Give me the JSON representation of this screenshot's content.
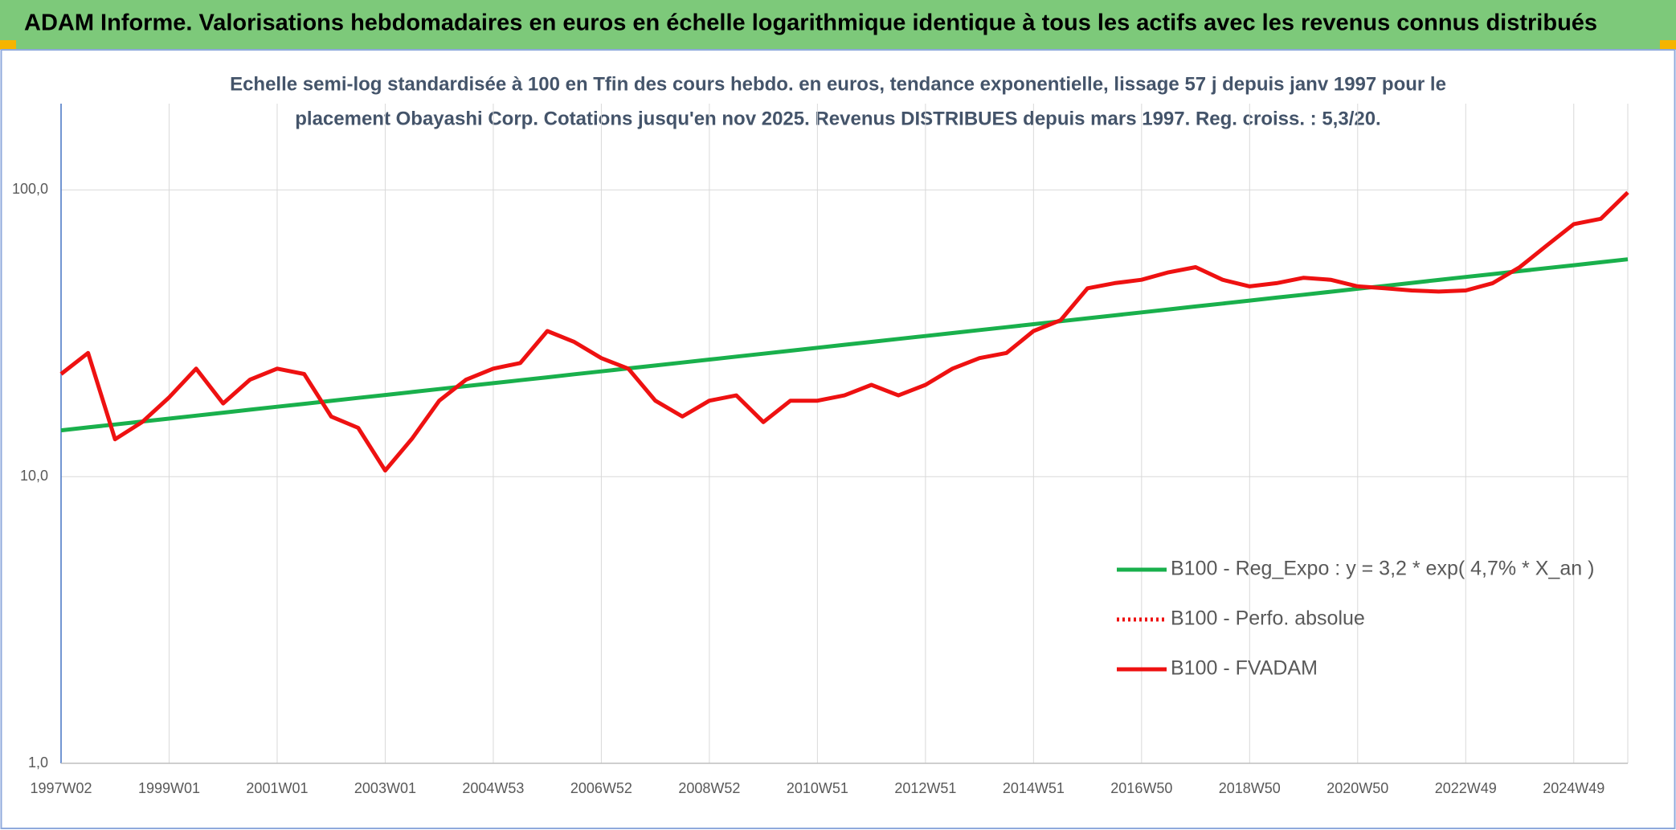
{
  "chart_data": {
    "type": "line",
    "title": "ADAM Informe. Valorisations hebdomadaires en euros en échelle logarithmique identique à tous les actifs avec les revenus connus distribués",
    "subtitle": [
      "Echelle semi-log standardisée à 100 en Tfin des cours hebdo. en euros, tendance exponentielle, lissage 57 j depuis janv 1997 pour le",
      "placement Obayashi Corp. Cotations jusqu'en nov 2025. Revenus DISTRIBUES depuis mars 1997. Reg. croiss. : 5,3/20."
    ],
    "log_y": true,
    "grid": true,
    "legend": "lower right",
    "ylim": [
      1,
      200
    ],
    "yticks": [
      {
        "value": 1,
        "label": "1,0"
      },
      {
        "value": 10,
        "label": "10,0"
      },
      {
        "value": 100,
        "label": "100,0"
      }
    ],
    "categories": [
      "1997W02",
      null,
      null,
      null,
      "1999W01",
      null,
      null,
      null,
      "2001W01",
      null,
      null,
      null,
      "2003W01",
      null,
      null,
      null,
      "2004W53",
      null,
      null,
      null,
      "2006W52",
      null,
      null,
      null,
      "2008W52",
      null,
      null,
      null,
      "2010W51",
      null,
      null,
      null,
      "2012W51",
      null,
      null,
      null,
      "2014W51",
      null,
      null,
      null,
      "2016W50",
      null,
      null,
      null,
      "2018W50",
      null,
      null,
      null,
      "2020W50",
      null,
      null,
      null,
      "2022W49",
      null,
      null,
      null,
      "2024W49",
      null,
      null
    ],
    "series": [
      {
        "name": "B100 - Reg_Expo : y = 3,2 * exp( 4,7% *  X_an )",
        "color": "#19b04c",
        "dash": "solid",
        "values": [
          14.5,
          14.85,
          15.2,
          15.57,
          15.94,
          16.32,
          16.71,
          17.12,
          17.53,
          17.95,
          18.38,
          18.82,
          19.27,
          19.73,
          20.21,
          20.69,
          21.18,
          21.69,
          22.21,
          22.75,
          23.29,
          23.85,
          24.42,
          25.01,
          25.6,
          26.22,
          26.85,
          27.49,
          28.15,
          28.83,
          29.52,
          30.22,
          30.94,
          31.69,
          32.45,
          33.22,
          34.02,
          34.84,
          35.67,
          36.53,
          37.4,
          38.3,
          39.22,
          40.16,
          41.12,
          42.11,
          43.12,
          44.15,
          45.21,
          46.29,
          47.4,
          48.54,
          49.7,
          50.89,
          52.12,
          53.37,
          54.64,
          55.95,
          57.3
        ]
      },
      {
        "name": "B100 - Perfo. absolue",
        "color": "#ee1111",
        "dash": "dotted",
        "values": [
          null,
          null,
          null,
          null,
          null,
          null,
          null,
          null,
          null,
          null,
          null,
          null,
          null,
          null,
          null,
          null,
          null,
          null,
          null,
          null,
          null,
          null,
          null,
          null,
          null,
          null,
          null,
          null,
          null,
          null,
          null,
          null,
          null,
          null,
          null,
          null,
          null,
          null,
          null,
          null,
          null,
          null,
          null,
          null,
          null,
          null,
          null,
          null,
          null,
          null,
          null,
          null,
          null,
          null,
          null,
          null,
          null,
          null,
          null
        ]
      },
      {
        "name": "B100 - FVADAM",
        "color": "#ee1111",
        "dash": "solid",
        "values": [
          22.8,
          27,
          13.5,
          15.5,
          18.9,
          23.8,
          18,
          21.8,
          23.8,
          22.8,
          16.2,
          14.8,
          10.5,
          13.6,
          18.4,
          21.8,
          23.8,
          24.9,
          32.2,
          29.5,
          25.9,
          23.8,
          18.4,
          16.2,
          18.4,
          19.2,
          15.5,
          18.4,
          18.4,
          19.2,
          20.9,
          19.2,
          20.9,
          23.8,
          25.9,
          27,
          32.2,
          35.1,
          45.4,
          47.3,
          48.6,
          51.6,
          53.8,
          48.6,
          46.1,
          47.3,
          49.4,
          48.6,
          46.1,
          45.4,
          44.6,
          44.2,
          44.6,
          47.3,
          53.8,
          64,
          76,
          79.3,
          98
        ]
      }
    ]
  }
}
